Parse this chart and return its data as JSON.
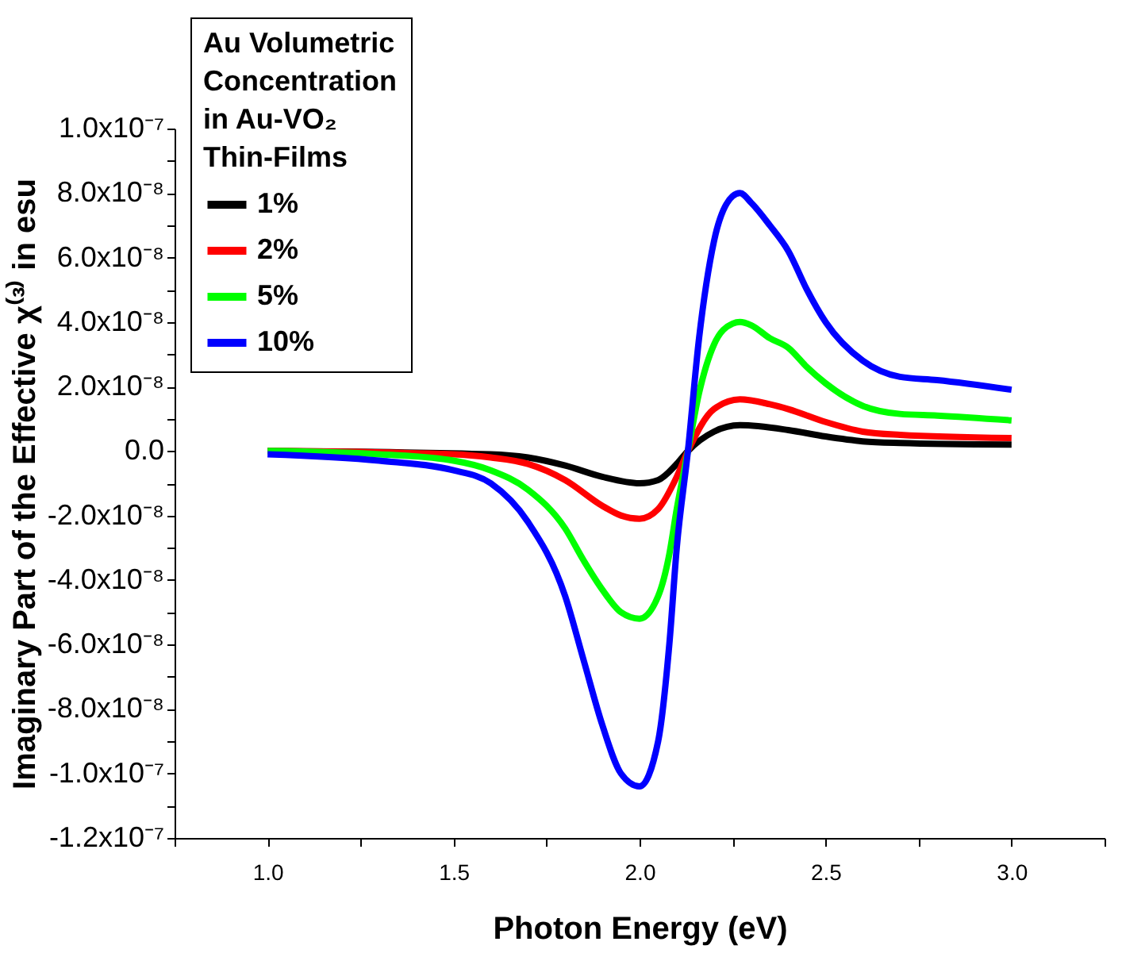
{
  "chart_data": {
    "type": "line",
    "xlabel": "Photon Energy (eV)",
    "ylabel": "Imaginary Part of the Effective χ⁽³⁾ in esu",
    "legend_title": "Au Volumetric Concentration in Au-VO₂ Thin-Films",
    "legend": "top left",
    "grid": false,
    "line_style": "solid",
    "marker": "none",
    "xlim": [
      0.75,
      3.25
    ],
    "ylim": [
      -1.2e-07,
      1e-07
    ],
    "xticks": [
      {
        "value": 0.75,
        "label": null
      },
      {
        "value": 1.0,
        "label": "1.0"
      },
      {
        "value": 1.25,
        "label": null
      },
      1.5,
      {
        "value": 1.75,
        "label": null
      },
      {
        "value": 2.0,
        "label": "2.0"
      },
      {
        "value": 2.25,
        "label": null
      },
      2.5,
      {
        "value": 2.75,
        "label": null
      },
      {
        "value": 3.0,
        "label": "3.0"
      },
      {
        "value": 3.25,
        "label": null
      }
    ],
    "yticks": [
      {
        "value": -1.2e-07,
        "label": "-1.2x10⁻⁷"
      },
      {
        "value": -1.1e-07,
        "label": null
      },
      {
        "value": -1e-07,
        "label": "-1.0x10⁻⁷"
      },
      {
        "value": -9e-08,
        "label": null
      },
      {
        "value": -8e-08,
        "label": "-8.0x10⁻⁸"
      },
      {
        "value": -7e-08,
        "label": null
      },
      {
        "value": -6e-08,
        "label": "-6.0x10⁻⁸"
      },
      {
        "value": -5e-08,
        "label": null
      },
      {
        "value": -4e-08,
        "label": "-4.0x10⁻⁸"
      },
      {
        "value": -3e-08,
        "label": null
      },
      {
        "value": -2e-08,
        "label": "-2.0x10⁻⁸"
      },
      {
        "value": -1e-08,
        "label": null
      },
      {
        "value": 0,
        "label": "0.0"
      },
      {
        "value": 1e-08,
        "label": null
      },
      {
        "value": 2e-08,
        "label": "2.0x10⁻⁸"
      },
      {
        "value": 3e-08,
        "label": null
      },
      {
        "value": 4e-08,
        "label": "4.0x10⁻⁸"
      },
      {
        "value": 5e-08,
        "label": null
      },
      {
        "value": 6e-08,
        "label": "6.0x10⁻⁸"
      },
      {
        "value": 7e-08,
        "label": null
      },
      {
        "value": 8e-08,
        "label": "8.0x10⁻⁸"
      },
      {
        "value": 9e-08,
        "label": null
      },
      {
        "value": 1e-07,
        "label": "1.0x10⁻⁷"
      }
    ],
    "series": [
      {
        "name": "1%",
        "color": "#000000",
        "x": [
          1.0,
          1.6,
          1.7,
          1.8,
          1.9,
          2.0,
          2.05,
          2.1,
          2.13,
          2.2,
          2.27,
          2.4,
          2.5,
          2.6,
          2.7,
          3.0
        ],
        "values": [
          0,
          -1e-09,
          -2e-09,
          -4.5e-09,
          -8e-09,
          -1e-08,
          -9e-09,
          -4e-09,
          0,
          6e-09,
          8e-09,
          6.5e-09,
          4.5e-09,
          3e-09,
          2.5e-09,
          2e-09
        ]
      },
      {
        "name": "2%",
        "color": "#ff0000",
        "x": [
          1.0,
          1.5,
          1.6,
          1.7,
          1.8,
          1.9,
          1.95,
          2.0,
          2.05,
          2.1,
          2.13,
          2.2,
          2.27,
          2.35,
          2.4,
          2.5,
          2.6,
          2.7,
          3.0
        ],
        "values": [
          0,
          -1e-09,
          -2e-09,
          -4e-09,
          -9e-09,
          -1.7e-08,
          -2e-08,
          -2.1e-08,
          -1.8e-08,
          -8e-09,
          0,
          1.3e-08,
          1.6e-08,
          1.45e-08,
          1.3e-08,
          9e-09,
          6e-09,
          5e-09,
          4e-09
        ]
      },
      {
        "name": "5%",
        "color": "#00ff00",
        "x": [
          1.0,
          1.3,
          1.5,
          1.6,
          1.7,
          1.8,
          1.85,
          1.9,
          1.95,
          2.0,
          2.05,
          2.08,
          2.1,
          2.13,
          2.16,
          2.2,
          2.25,
          2.27,
          2.3,
          2.35,
          2.4,
          2.45,
          2.5,
          2.6,
          2.7,
          2.8,
          3.0
        ],
        "values": [
          0,
          -1e-09,
          -3e-09,
          -6e-09,
          -1.2e-08,
          -2.4e-08,
          -3.4e-08,
          -4.3e-08,
          -5e-08,
          -5.2e-08,
          -4.5e-08,
          -3.2e-08,
          -1.8e-08,
          0,
          1.8e-08,
          3.3e-08,
          3.95e-08,
          4e-08,
          3.9e-08,
          3.5e-08,
          3.2e-08,
          2.6e-08,
          2.1e-08,
          1.4e-08,
          1.15e-08,
          1.1e-08,
          9.5e-09
        ]
      },
      {
        "name": "10%",
        "color": "#0000ff",
        "x": [
          1.0,
          1.3,
          1.5,
          1.6,
          1.7,
          1.8,
          1.85,
          1.9,
          1.95,
          2.0,
          2.05,
          2.08,
          2.1,
          2.13,
          2.16,
          2.2,
          2.25,
          2.27,
          2.3,
          2.35,
          2.4,
          2.45,
          2.5,
          2.6,
          2.7,
          2.8,
          3.0
        ],
        "values": [
          -1e-09,
          -3e-09,
          -6e-09,
          -1e-08,
          -2.2e-08,
          -4.5e-08,
          -6.5e-08,
          -8.5e-08,
          -1e-07,
          -1.04e-07,
          -9e-08,
          -6e-08,
          -3e-08,
          0,
          3.5e-08,
          6.5e-08,
          7.9e-08,
          8e-08,
          7.7e-08,
          7e-08,
          6.2e-08,
          5e-08,
          4e-08,
          2.8e-08,
          2.3e-08,
          2.2e-08,
          1.9e-08
        ]
      }
    ]
  }
}
